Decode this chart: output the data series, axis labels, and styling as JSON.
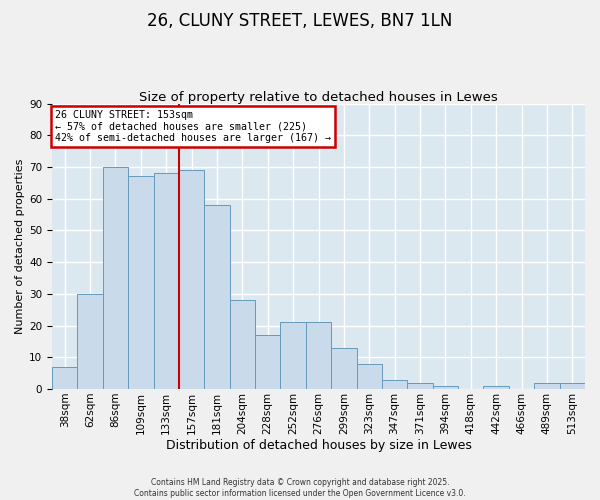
{
  "title": "26, CLUNY STREET, LEWES, BN7 1LN",
  "subtitle": "Size of property relative to detached houses in Lewes",
  "xlabel": "Distribution of detached houses by size in Lewes",
  "ylabel": "Number of detached properties",
  "bin_labels": [
    "38sqm",
    "62sqm",
    "86sqm",
    "109sqm",
    "133sqm",
    "157sqm",
    "181sqm",
    "204sqm",
    "228sqm",
    "252sqm",
    "276sqm",
    "299sqm",
    "323sqm",
    "347sqm",
    "371sqm",
    "394sqm",
    "418sqm",
    "442sqm",
    "466sqm",
    "489sqm",
    "513sqm"
  ],
  "bar_heights": [
    7,
    30,
    70,
    67,
    68,
    69,
    58,
    28,
    17,
    21,
    21,
    13,
    8,
    3,
    2,
    1,
    0,
    1,
    0,
    2,
    2
  ],
  "bar_color": "#c9daea",
  "bar_edge_color": "#6699bb",
  "background_color": "#dce8f0",
  "grid_color": "#ffffff",
  "red_line_index": 5,
  "annotation_line1": "26 CLUNY STREET: 153sqm",
  "annotation_line2": "← 57% of detached houses are smaller (225)",
  "annotation_line3": "42% of semi-detached houses are larger (167) →",
  "annotation_box_facecolor": "#ffffff",
  "annotation_box_edgecolor": "#cc0000",
  "ylim": [
    0,
    90
  ],
  "yticks": [
    0,
    10,
    20,
    30,
    40,
    50,
    60,
    70,
    80,
    90
  ],
  "footer_line1": "Contains HM Land Registry data © Crown copyright and database right 2025.",
  "footer_line2": "Contains public sector information licensed under the Open Government Licence v3.0.",
  "title_fontsize": 12,
  "subtitle_fontsize": 9.5,
  "xlabel_fontsize": 9,
  "ylabel_fontsize": 8,
  "tick_fontsize": 7.5,
  "footer_fontsize": 5.5
}
